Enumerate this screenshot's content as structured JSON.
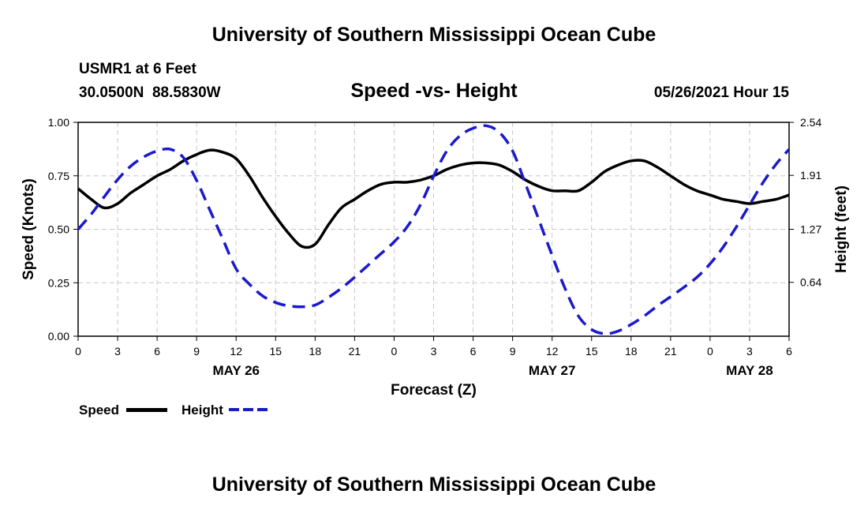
{
  "header": {
    "title": "University of Southern Mississippi Ocean Cube",
    "station": "USMR1 at 6 Feet",
    "coords": "30.0500N  88.5830W",
    "datetime": "05/26/2021 Hour 15"
  },
  "footer": {
    "title": "University of Southern Mississippi Ocean Cube"
  },
  "legend": {
    "speed_label": "Speed",
    "height_label": "Height"
  },
  "colors": {
    "speed": "#000000",
    "height": "#1a1acc",
    "grid": "#c8c8c8"
  },
  "chart_data": {
    "type": "line",
    "title": "Speed -vs- Height",
    "xlabel": "Forecast (Z)",
    "ylabel": "Speed (Knots)",
    "ylabel_right": "Height (feet)",
    "xlim": [
      0,
      54
    ],
    "ylim": [
      0,
      1
    ],
    "ylim_right": [
      0,
      2.54
    ],
    "x_ticks": [
      0,
      3,
      6,
      9,
      12,
      15,
      18,
      21,
      24,
      27,
      30,
      33,
      36,
      39,
      42,
      45,
      48,
      51,
      54
    ],
    "x_tick_labels": [
      "0",
      "3",
      "6",
      "9",
      "12",
      "15",
      "18",
      "21",
      "0",
      "3",
      "6",
      "9",
      "12",
      "15",
      "18",
      "21",
      "0",
      "3",
      "6"
    ],
    "date_labels": [
      {
        "x": 12,
        "label": "MAY 26"
      },
      {
        "x": 36,
        "label": "MAY 27"
      },
      {
        "x": 51,
        "label": "MAY 28"
      }
    ],
    "y_ticks": [
      0,
      0.25,
      0.5,
      0.75,
      1
    ],
    "y_tick_labels": [
      "0.00",
      "0.25",
      "0.50",
      "0.75",
      "1.00"
    ],
    "y_right_ticks": [
      0.64,
      1.27,
      1.91,
      2.54
    ],
    "y_right_tick_labels": [
      "0.64",
      "1.27",
      "1.91",
      "2.54"
    ],
    "grid": true,
    "series": [
      {
        "name": "Speed",
        "axis": "left",
        "style": "solid",
        "x": [
          0,
          1,
          2,
          3,
          4,
          5,
          6,
          7,
          8,
          9,
          10,
          11,
          12,
          13,
          14,
          15,
          16,
          17,
          18,
          19,
          20,
          21,
          22,
          23,
          24,
          25,
          26,
          27,
          28,
          29,
          30,
          31,
          32,
          33,
          34,
          35,
          36,
          37,
          38,
          39,
          40,
          41,
          42,
          43,
          44,
          45,
          46,
          47,
          48,
          49,
          50,
          51,
          52,
          53,
          54
        ],
        "values": [
          0.69,
          0.64,
          0.6,
          0.62,
          0.67,
          0.71,
          0.75,
          0.78,
          0.82,
          0.85,
          0.87,
          0.86,
          0.83,
          0.75,
          0.65,
          0.56,
          0.48,
          0.42,
          0.43,
          0.52,
          0.6,
          0.64,
          0.68,
          0.71,
          0.72,
          0.72,
          0.73,
          0.75,
          0.78,
          0.8,
          0.81,
          0.81,
          0.8,
          0.77,
          0.73,
          0.7,
          0.68,
          0.68,
          0.68,
          0.72,
          0.77,
          0.8,
          0.82,
          0.82,
          0.79,
          0.75,
          0.71,
          0.68,
          0.66,
          0.64,
          0.63,
          0.62,
          0.63,
          0.64,
          0.66
        ]
      },
      {
        "name": "Height",
        "axis": "right",
        "style": "dashed",
        "x": [
          0,
          1,
          2,
          3,
          4,
          5,
          6,
          7,
          8,
          9,
          10,
          11,
          12,
          13,
          14,
          15,
          16,
          17,
          18,
          19,
          20,
          21,
          22,
          23,
          24,
          25,
          26,
          27,
          28,
          29,
          30,
          31,
          32,
          33,
          34,
          35,
          36,
          37,
          38,
          39,
          40,
          41,
          42,
          43,
          44,
          45,
          46,
          47,
          48,
          49,
          50,
          51,
          52,
          53,
          54
        ],
        "values": [
          1.27,
          1.45,
          1.66,
          1.86,
          2.02,
          2.13,
          2.2,
          2.22,
          2.12,
          1.85,
          1.5,
          1.15,
          0.8,
          0.62,
          0.48,
          0.4,
          0.36,
          0.35,
          0.37,
          0.46,
          0.57,
          0.7,
          0.84,
          0.98,
          1.12,
          1.3,
          1.56,
          1.9,
          2.2,
          2.38,
          2.47,
          2.5,
          2.42,
          2.2,
          1.8,
          1.38,
          0.96,
          0.56,
          0.24,
          0.08,
          0.03,
          0.06,
          0.14,
          0.24,
          0.36,
          0.47,
          0.58,
          0.7,
          0.86,
          1.06,
          1.3,
          1.56,
          1.82,
          2.04,
          2.22
        ]
      }
    ]
  }
}
